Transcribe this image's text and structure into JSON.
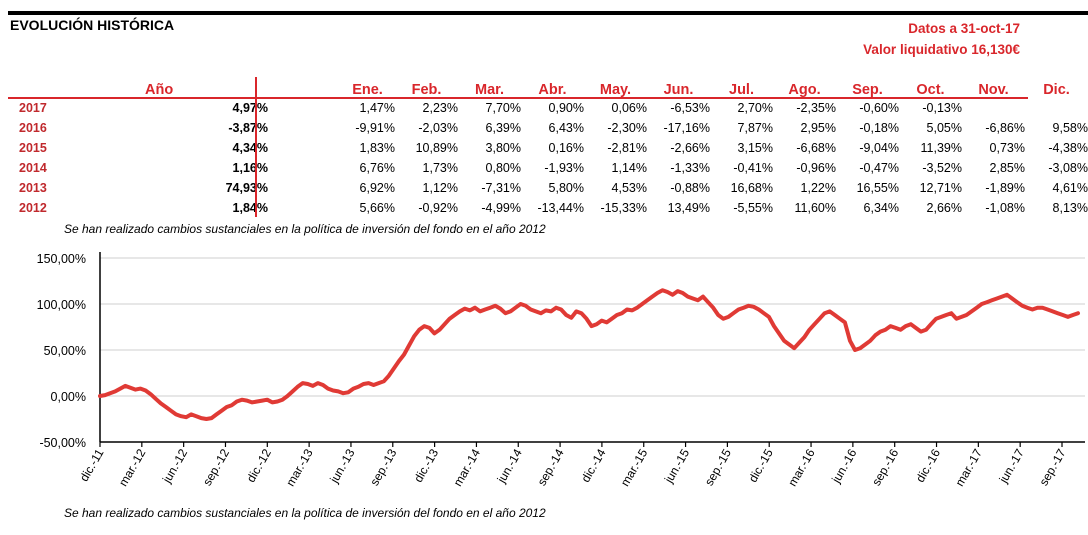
{
  "title": "EVOLUCIÓN HISTÓRICA",
  "datos_fecha": "Datos a 31-oct-17",
  "valor_liquidativo": "Valor liquidativo 16,130€",
  "table": {
    "headers": [
      "Año",
      "Ene.",
      "Feb.",
      "Mar.",
      "Abr.",
      "May.",
      "Jun.",
      "Jul.",
      "Ago.",
      "Sep.",
      "Oct.",
      "Nov.",
      "Dic."
    ],
    "rows": [
      {
        "year": "2017",
        "annual": "4,97%",
        "months": [
          "1,47%",
          "2,23%",
          "7,70%",
          "0,90%",
          "0,06%",
          "-6,53%",
          "2,70%",
          "-2,35%",
          "-0,60%",
          "-0,13%",
          "",
          ""
        ]
      },
      {
        "year": "2016",
        "annual": "-3,87%",
        "months": [
          "-9,91%",
          "-2,03%",
          "6,39%",
          "6,43%",
          "-2,30%",
          "-17,16%",
          "7,87%",
          "2,95%",
          "-0,18%",
          "5,05%",
          "-6,86%",
          "9,58%"
        ]
      },
      {
        "year": "2015",
        "annual": "4,34%",
        "months": [
          "1,83%",
          "10,89%",
          "3,80%",
          "0,16%",
          "-2,81%",
          "-2,66%",
          "3,15%",
          "-6,68%",
          "-9,04%",
          "11,39%",
          "0,73%",
          "-4,38%"
        ]
      },
      {
        "year": "2014",
        "annual": "1,16%",
        "months": [
          "6,76%",
          "1,73%",
          "0,80%",
          "-1,93%",
          "1,14%",
          "-1,33%",
          "-0,41%",
          "-0,96%",
          "-0,47%",
          "-3,52%",
          "2,85%",
          "-3,08%"
        ]
      },
      {
        "year": "2013",
        "annual": "74,93%",
        "months": [
          "6,92%",
          "1,12%",
          "-7,31%",
          "5,80%",
          "4,53%",
          "-0,88%",
          "16,68%",
          "1,22%",
          "16,55%",
          "12,71%",
          "-1,89%",
          "4,61%"
        ]
      },
      {
        "year": "2012",
        "annual": "1,84%",
        "months": [
          "5,66%",
          "-0,92%",
          "-4,99%",
          "-13,44%",
          "-15,33%",
          "13,49%",
          "-5,55%",
          "11,60%",
          "6,34%",
          "2,66%",
          "-1,08%",
          "8,13%"
        ]
      }
    ]
  },
  "note": "Se han realizado cambios sustanciales en la política de inversión del fondo en el año 2012",
  "chart_data": {
    "type": "line",
    "y_ticks": [
      "150,00%",
      "100,00%",
      "50,00%",
      "0,00%",
      "-50,00%"
    ],
    "ylim": [
      -50,
      150
    ],
    "x_ticks": [
      "dic.-11",
      "mar.-12",
      "jun.-12",
      "sep.-12",
      "dic.-12",
      "mar.-13",
      "jun.-13",
      "sep.-13",
      "dic.-13",
      "mar.-14",
      "jun.-14",
      "sep.-14",
      "dic.-14",
      "mar.-15",
      "jun.-15",
      "sep.-15",
      "dic.-15",
      "mar.-16",
      "jun.-16",
      "sep.-16",
      "dic.-16",
      "mar.-17",
      "jun.-17",
      "sep.-17"
    ],
    "grid": true,
    "line_color": "#e03a35",
    "series": [
      {
        "values": [
          0,
          1,
          3,
          5,
          8,
          11,
          9,
          7,
          8,
          6,
          2,
          -3,
          -8,
          -12,
          -16,
          -20,
          -22,
          -23,
          -20,
          -22,
          -24,
          -25,
          -24,
          -20,
          -16,
          -12,
          -10,
          -6,
          -4,
          -5,
          -7,
          -6,
          -5,
          -4,
          -7,
          -6,
          -4,
          0,
          5,
          10,
          14,
          13,
          11,
          14,
          12,
          8,
          6,
          5,
          3,
          4,
          8,
          10,
          13,
          14,
          12,
          14,
          16,
          22,
          30,
          38,
          45,
          55,
          65,
          72,
          76,
          74,
          68,
          72,
          78,
          84,
          88,
          92,
          95,
          93,
          96,
          92,
          94,
          96,
          98,
          95,
          90,
          92,
          96,
          100,
          98,
          94,
          92,
          90,
          93,
          92,
          96,
          94,
          88,
          85,
          92,
          90,
          84,
          76,
          78,
          82,
          80,
          84,
          88,
          90,
          94,
          93,
          96,
          100,
          104,
          108,
          112,
          115,
          113,
          110,
          114,
          112,
          108,
          106,
          104,
          108,
          102,
          96,
          88,
          84,
          86,
          90,
          94,
          96,
          98,
          97,
          94,
          90,
          86,
          76,
          68,
          60,
          56,
          52,
          58,
          64,
          72,
          78,
          84,
          90,
          92,
          88,
          84,
          80,
          60,
          50,
          52,
          56,
          60,
          66,
          70,
          72,
          76,
          74,
          72,
          76,
          78,
          74,
          70,
          72,
          78,
          84,
          86,
          88,
          90,
          84,
          86,
          88,
          92,
          96,
          100,
          102,
          104,
          106,
          108,
          110,
          106,
          102,
          98,
          96,
          94,
          96,
          96,
          94,
          92,
          90,
          88,
          86,
          88,
          90
        ]
      }
    ]
  }
}
